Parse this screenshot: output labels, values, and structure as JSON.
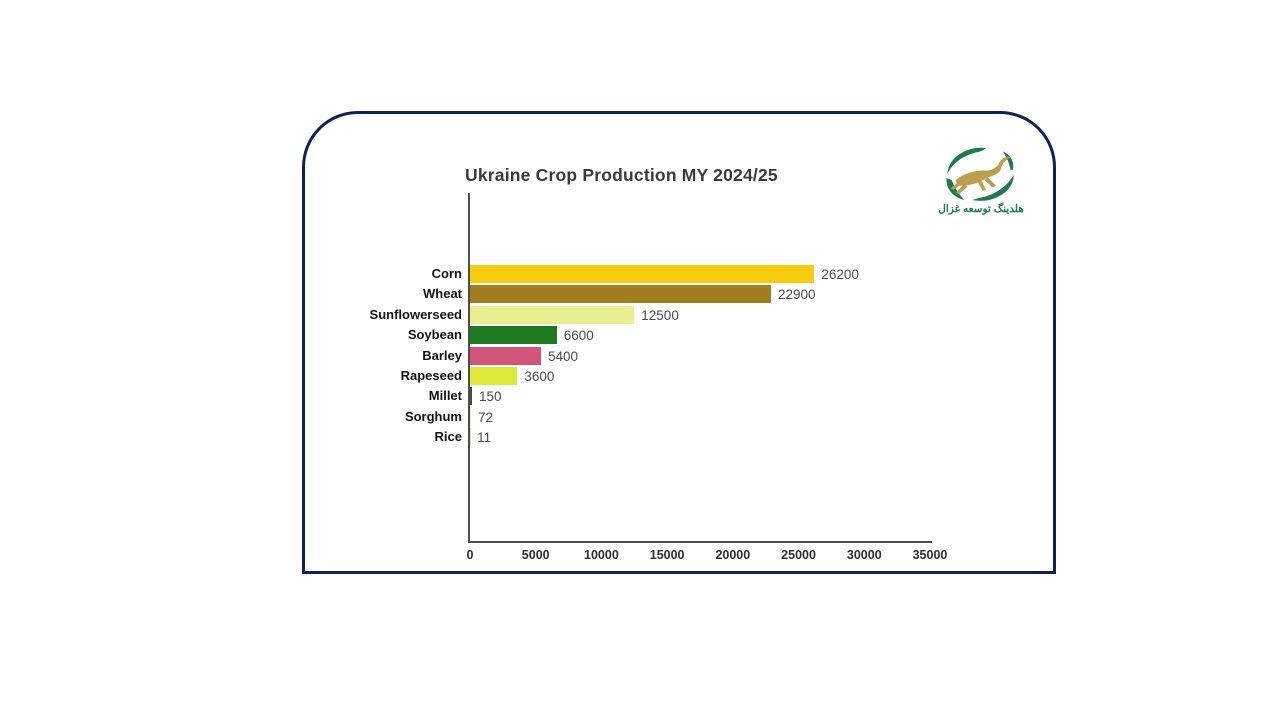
{
  "logo": {
    "text": "هلدینگ توسعه غزال",
    "green": "#1e7a4c",
    "gold": "#bd9e4e"
  },
  "chart_data": {
    "type": "bar",
    "orientation": "horizontal",
    "title": "Ukraine Crop Production MY 2024/25",
    "categories": [
      "Corn",
      "Wheat",
      "Sunflowerseed",
      "Soybean",
      "Barley",
      "Rapeseed",
      "Millet",
      "Sorghum",
      "Rice"
    ],
    "values": [
      26200,
      22900,
      12500,
      6600,
      5400,
      3600,
      150,
      72,
      11
    ],
    "value_labels": [
      "26200",
      "22900",
      "12500",
      "6600",
      "5400",
      "3600",
      "150",
      "72",
      "11"
    ],
    "bar_colors": [
      "#f5cc0f",
      "#a17d20",
      "#eaee8f",
      "#1f7a1f",
      "#d05578",
      "#dce93b",
      "#5a4632",
      "#e9e6c9",
      "#ddddcc"
    ],
    "xlim": [
      0,
      35000
    ],
    "x_ticks": [
      0,
      5000,
      10000,
      15000,
      20000,
      25000,
      30000,
      35000
    ],
    "x_tick_labels": [
      "0",
      "5000",
      "10000",
      "15000",
      "20000",
      "25000",
      "30000",
      "35000"
    ],
    "xlabel": "",
    "ylabel": "",
    "grid": false,
    "legend": null,
    "axis_color": "#4d4d4d",
    "border_color": "#0e2355"
  }
}
